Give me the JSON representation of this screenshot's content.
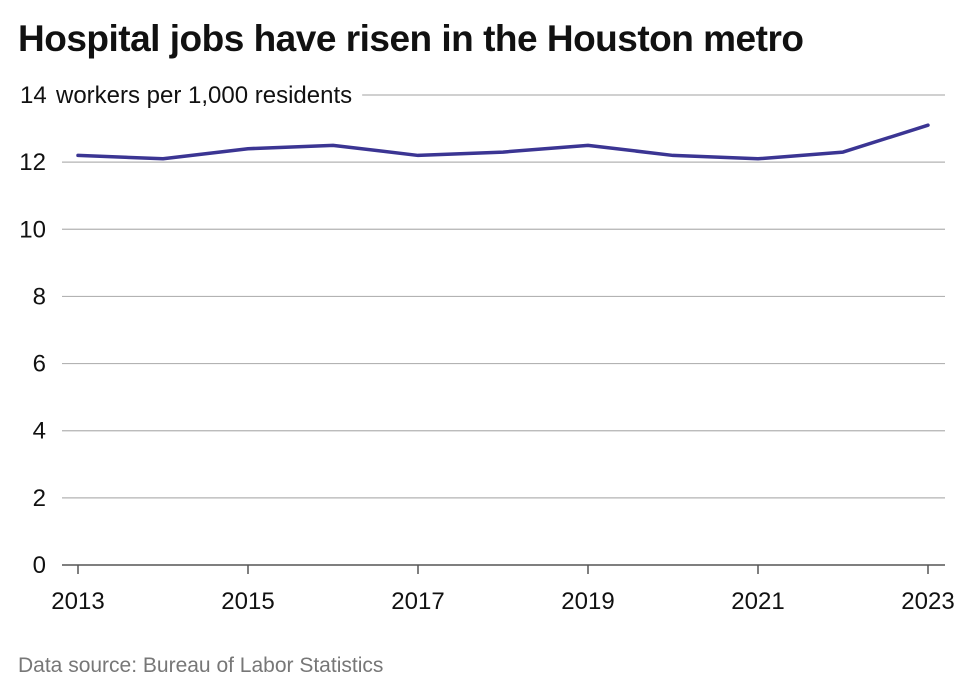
{
  "chart_data": {
    "type": "line",
    "title": "Hospital jobs have risen in the Houston metro",
    "ylabel": "workers per 1,000 residents",
    "xlabel": "",
    "source": "Data source: Bureau of Labor Statistics",
    "x": [
      2013,
      2014,
      2015,
      2016,
      2017,
      2018,
      2019,
      2020,
      2021,
      2022,
      2023
    ],
    "series": [
      {
        "values": [
          12.2,
          12.1,
          12.4,
          12.5,
          12.2,
          12.3,
          12.5,
          12.2,
          12.1,
          12.3,
          13.1
        ]
      }
    ],
    "xticks": [
      2013,
      2015,
      2017,
      2019,
      2021,
      2023
    ],
    "yticks": [
      0,
      2,
      4,
      6,
      8,
      10,
      12,
      14
    ],
    "xlim": [
      2013,
      2023
    ],
    "ylim": [
      0,
      14
    ],
    "grid": "horizontal",
    "colors": {
      "line": "#3b3593",
      "grid": "#b3b3b3",
      "axis": "#555555",
      "source_text": "#777777"
    }
  }
}
